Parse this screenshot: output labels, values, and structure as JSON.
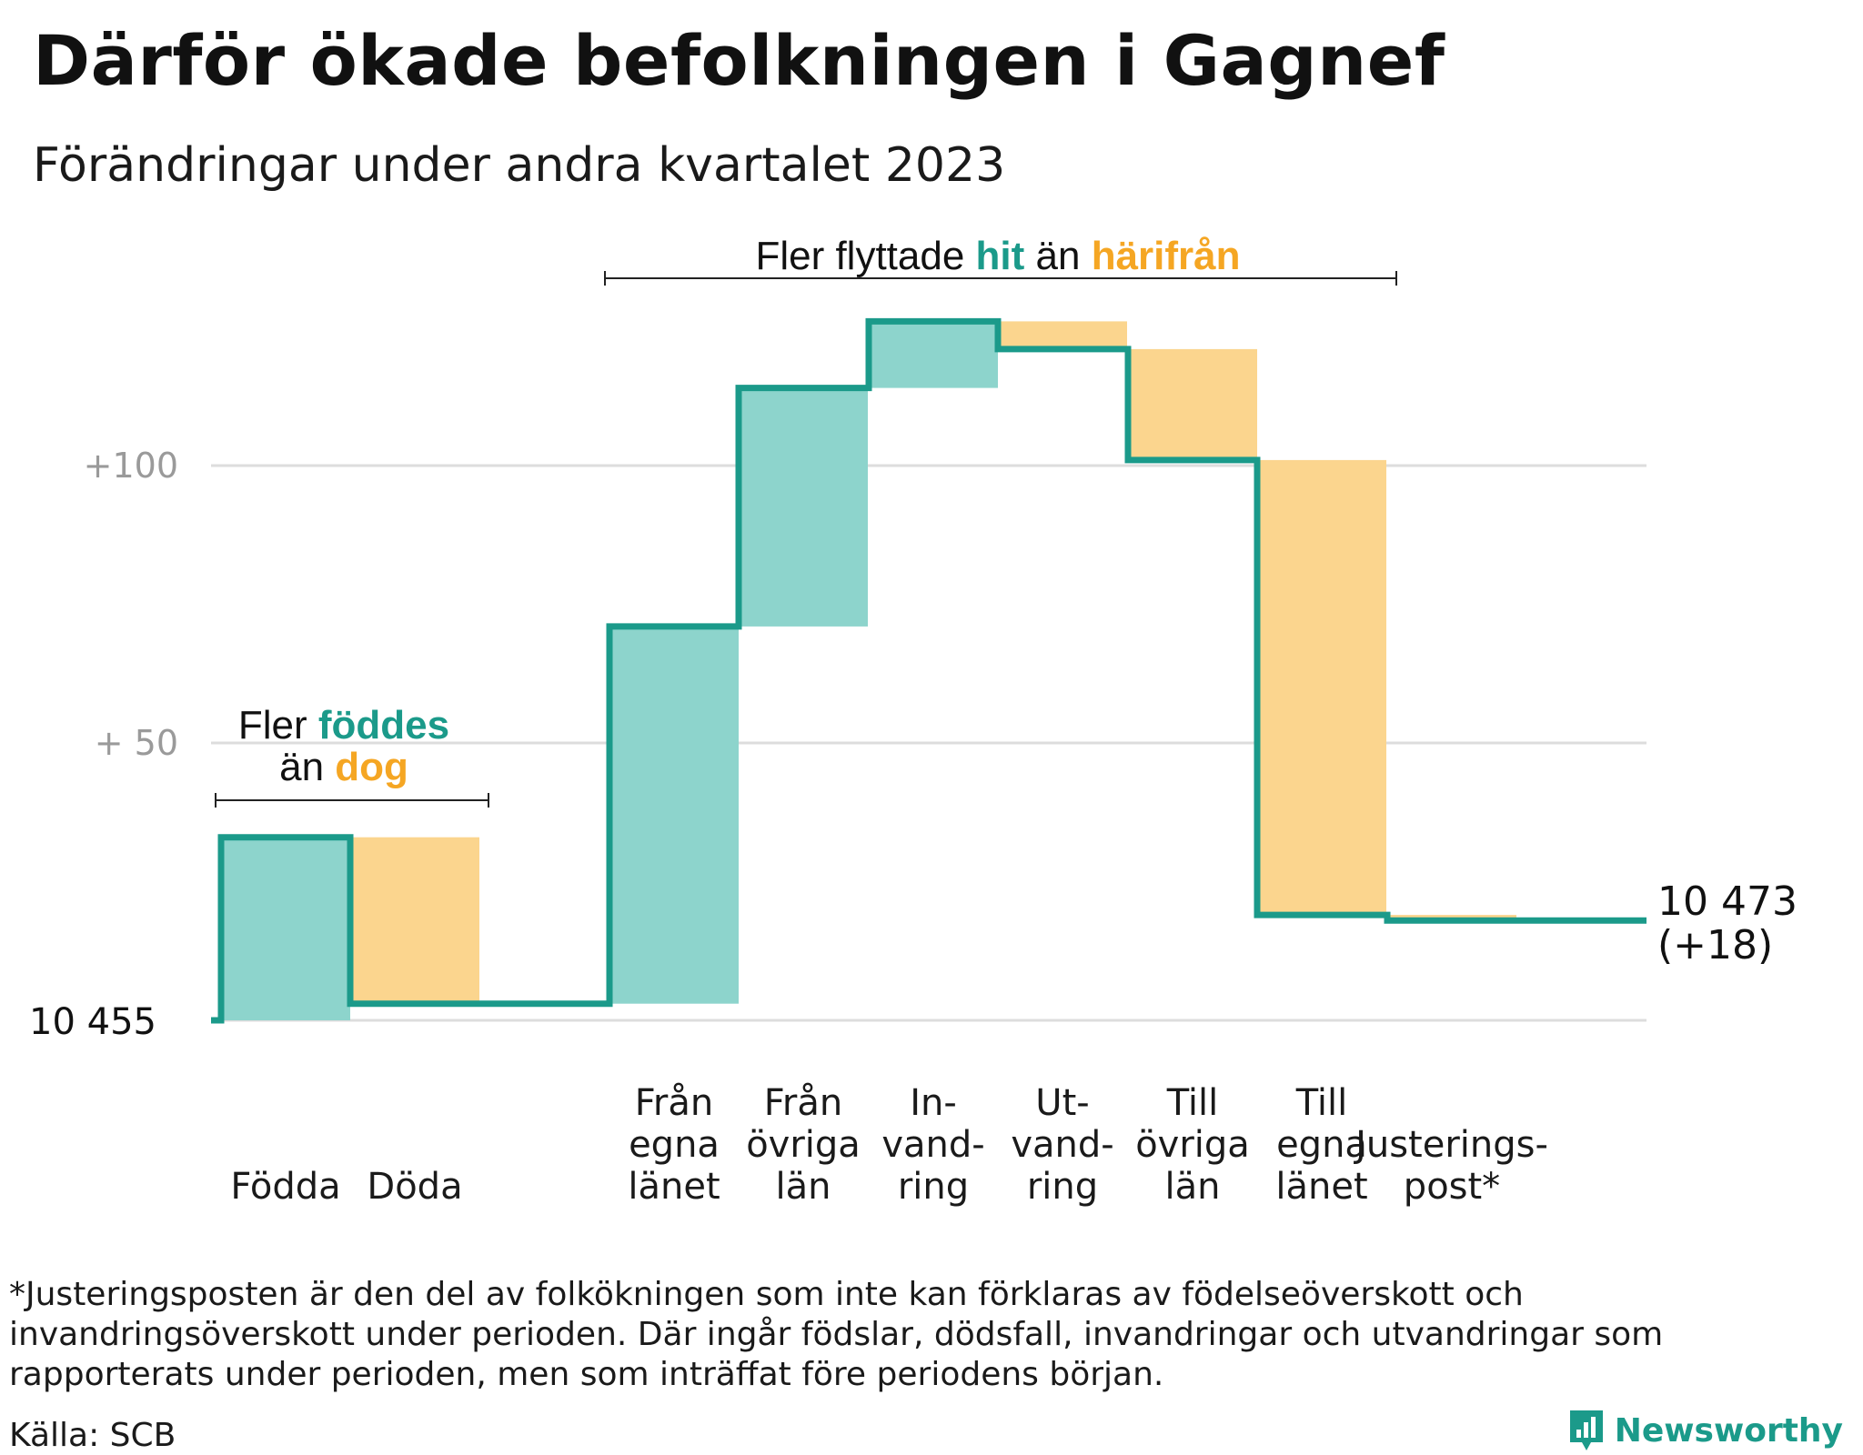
{
  "title": "Därför ökade befolkningen i Gagnef",
  "subtitle": "Förändringar under andra kvartalet 2023",
  "colors": {
    "increase_fill": "#8dd4cc",
    "decrease_fill": "#fbd58e",
    "line": "#1b9a8a",
    "accent_orange": "#f5a623",
    "grid": "#dddddd"
  },
  "annotations": {
    "births": {
      "pre": "Fler ",
      "strong1": "föddes",
      "mid": "än ",
      "strong2": "dog"
    },
    "moves": {
      "pre": "Fler flyttade ",
      "strong1": "hit",
      "mid": " än ",
      "strong2": "härifrån"
    }
  },
  "chart_data": {
    "type": "waterfall",
    "base_label": "10  455",
    "base_value": 10455,
    "yticks": [
      {
        "value": 10505,
        "label": "+  50"
      },
      {
        "value": 10555,
        "label": "+100"
      }
    ],
    "ylim": [
      10455,
      10580
    ],
    "steps": [
      {
        "label_lines": [
          "Födda"
        ],
        "delta": 33,
        "kind": "increase"
      },
      {
        "label_lines": [
          "Döda"
        ],
        "delta": -30,
        "kind": "decrease"
      },
      {
        "label_lines": [],
        "delta": 0,
        "kind": "gap"
      },
      {
        "label_lines": [
          "Från",
          "egna",
          "länet"
        ],
        "delta": 68,
        "kind": "increase"
      },
      {
        "label_lines": [
          "Från",
          "övriga",
          "län"
        ],
        "delta": 43,
        "kind": "increase"
      },
      {
        "label_lines": [
          "In-",
          "vand-",
          "ring"
        ],
        "delta": 12,
        "kind": "increase"
      },
      {
        "label_lines": [
          "Ut-",
          "vand-",
          "ring"
        ],
        "delta": -5,
        "kind": "decrease"
      },
      {
        "label_lines": [
          "Till",
          "övriga",
          "län"
        ],
        "delta": -20,
        "kind": "decrease"
      },
      {
        "label_lines": [
          "Till",
          "egna",
          "länet"
        ],
        "delta": -82,
        "kind": "decrease"
      },
      {
        "label_lines": [
          "Justerings-",
          "post*"
        ],
        "delta": -1,
        "kind": "decrease"
      }
    ],
    "end_label": [
      "10 473",
      "(+18)"
    ],
    "end_value": 10473
  },
  "footnote": "*Justeringsposten är den del av folkökningen som inte kan förklaras av födelseöverskott och invandringsöverskott under perioden. Där ingår födslar, dödsfall, invandringar och utvandringar som rapporterats under perioden, men som inträffat före periodens början.",
  "source": "Källa: SCB",
  "brand": {
    "name": "Newsworthy",
    "icon": "speech-bubble-bar-chart-icon"
  }
}
